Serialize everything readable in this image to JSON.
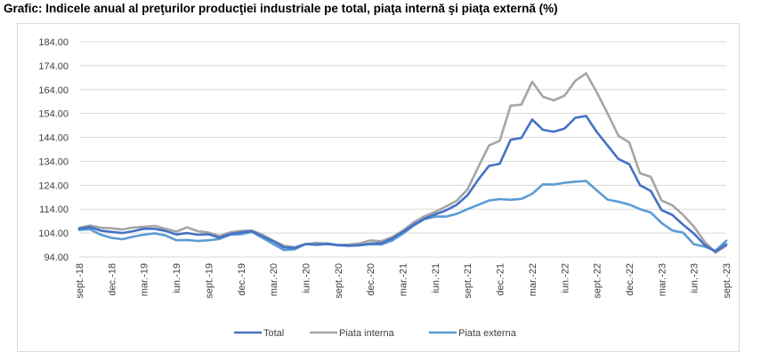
{
  "title": "Grafic: Indicele anual al preţurilor producţiei industriale pe total, piaţa internă şi piaţa externă (%)",
  "chart_data": {
    "type": "line",
    "ylim": [
      94,
      184
    ],
    "yticks": [
      "184.00",
      "174.00",
      "164.00",
      "154.00",
      "144.00",
      "134.00",
      "124.00",
      "114.00",
      "104.00",
      "94.00"
    ],
    "ytick_values": [
      184,
      174,
      164,
      154,
      144,
      134,
      124,
      114,
      104,
      94
    ],
    "x": [
      "sept.-18",
      "oct.-18",
      "nov.-18",
      "dec.-18",
      "ian.-19",
      "feb.-19",
      "mar.-19",
      "apr.-19",
      "mai.-19",
      "iun.-19",
      "iul.-19",
      "aug.-19",
      "sept.-19",
      "oct.-19",
      "nov.-19",
      "dec.-19",
      "ian.-20",
      "feb.-20",
      "mar.-20",
      "apr.-20",
      "mai.-20",
      "iun.-20",
      "iul.-20",
      "aug.-20",
      "sept.-20",
      "oct.-20",
      "nov.-20",
      "dec.-20",
      "ian.-21",
      "feb.-21",
      "mar.-21",
      "apr.-21",
      "mai.-21",
      "iun.-21",
      "iul.-21",
      "aug.-21",
      "sept.-21",
      "oct.-21",
      "nov.-21",
      "dec.-21",
      "ian.-22",
      "feb.-22",
      "mar.-22",
      "apr.-22",
      "mai.-22",
      "iun.-22",
      "iul.-22",
      "aug.-22",
      "sept.-22",
      "oct.-22",
      "nov.-22",
      "dec.-22",
      "ian.-23",
      "feb.-23",
      "mar.-23",
      "apr.-23",
      "mai.-23",
      "iun.-23",
      "iul.-23",
      "aug.-23",
      "sept.-23"
    ],
    "xtick_labels": [
      "sept.-18",
      "dec.-18",
      "mar.-19",
      "iun.-19",
      "sept.-19",
      "dec.-19",
      "mar.-20",
      "iun.-20",
      "sept.-20",
      "dec.-20",
      "mar.-21",
      "iun.-21",
      "sept.-21",
      "dec.-21",
      "mar.-22",
      "iun.-22",
      "sept.-22",
      "dec.-22",
      "mar.-23",
      "iun.-23",
      "sept.-23"
    ],
    "series": [
      {
        "name": "Total",
        "color": "#4472c4",
        "values": [
          105.8,
          106.5,
          105.0,
          104.5,
          104.0,
          104.8,
          105.8,
          105.8,
          104.9,
          103.4,
          104.0,
          103.3,
          103.5,
          102.1,
          103.6,
          104.3,
          104.8,
          102.6,
          100.6,
          98.0,
          97.8,
          99.4,
          99.1,
          99.4,
          98.9,
          98.7,
          98.9,
          99.6,
          99.8,
          101.7,
          104.5,
          107.5,
          110.0,
          111.8,
          113.5,
          115.8,
          119.8,
          126.3,
          132.1,
          133.0,
          143.0,
          143.8,
          151.5,
          147.2,
          146.4,
          147.7,
          152.2,
          153.0,
          146.2,
          140.6,
          135.0,
          132.8,
          124.0,
          121.6,
          113.6,
          111.6,
          107.5,
          103.8,
          99.0,
          96.2,
          99.3
        ]
      },
      {
        "name": "Piata interna",
        "color": "#a5a5a5",
        "values": [
          106.2,
          107.2,
          106.2,
          106.0,
          105.5,
          106.3,
          106.6,
          107.0,
          105.8,
          104.6,
          106.4,
          104.8,
          104.2,
          102.8,
          104.3,
          104.9,
          105.1,
          103.3,
          100.8,
          98.7,
          98.1,
          99.4,
          99.9,
          99.5,
          99.0,
          99.2,
          99.7,
          100.9,
          100.6,
          102.3,
          105.0,
          108.4,
          111.0,
          112.9,
          115.1,
          117.5,
          122.2,
          131.6,
          140.6,
          142.6,
          157.3,
          157.7,
          167.3,
          161.0,
          159.5,
          161.5,
          167.7,
          170.8,
          162.8,
          154.0,
          144.7,
          141.9,
          129.0,
          127.5,
          117.6,
          115.6,
          111.6,
          106.7,
          100.3,
          95.8,
          98.7
        ]
      },
      {
        "name": "Piata externa",
        "color": "#5b9bd5",
        "values": [
          105.3,
          105.6,
          103.3,
          102.0,
          101.4,
          102.5,
          103.3,
          103.9,
          103.0,
          101.0,
          101.1,
          100.7,
          101.0,
          101.5,
          103.3,
          103.5,
          104.5,
          102.0,
          99.4,
          96.9,
          97.2,
          99.5,
          99.2,
          99.7,
          99.0,
          98.8,
          98.9,
          99.3,
          99.2,
          100.8,
          103.7,
          107.0,
          109.8,
          110.9,
          110.9,
          112.0,
          114.0,
          115.8,
          117.6,
          118.2,
          117.9,
          118.3,
          120.4,
          124.4,
          124.3,
          125.0,
          125.5,
          125.8,
          121.8,
          118.0,
          117.1,
          115.9,
          114.0,
          112.6,
          108.2,
          105.1,
          104.2,
          99.3,
          98.3,
          96.6,
          100.8
        ]
      }
    ],
    "legend_position": "bottom",
    "grid": true
  }
}
